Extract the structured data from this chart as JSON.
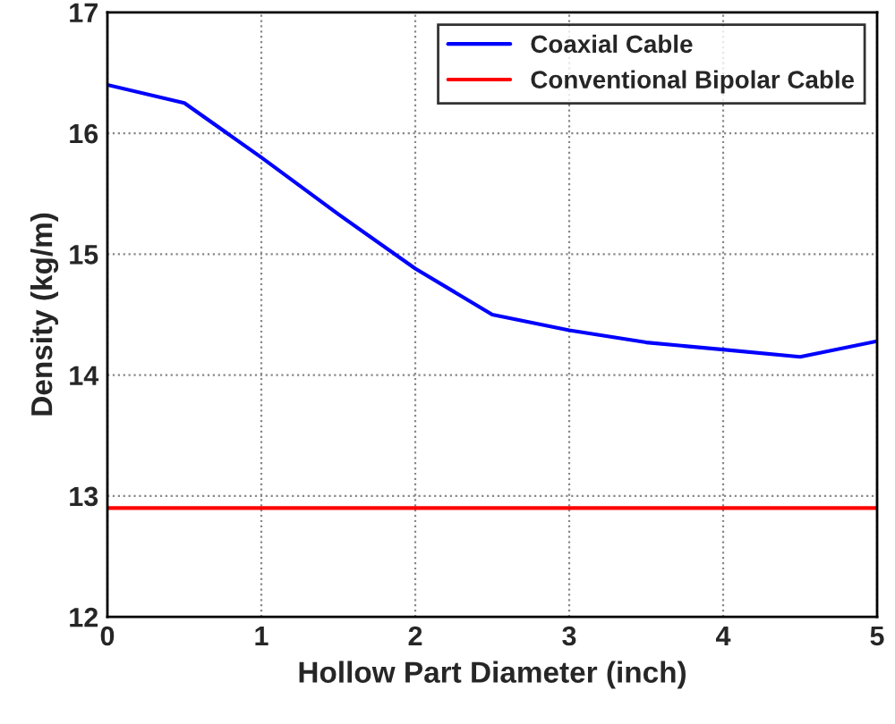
{
  "chart_data": {
    "type": "line",
    "xlabel": "Hollow Part Diameter (inch)",
    "ylabel": "Density (kg/m)",
    "x": [
      0,
      0.5,
      1,
      1.5,
      2,
      2.5,
      3,
      3.5,
      4,
      4.5,
      5
    ],
    "series": [
      {
        "name": "Coaxial Cable",
        "color": "#0000ff",
        "values": [
          16.4,
          16.25,
          15.8,
          15.33,
          14.88,
          14.5,
          14.37,
          14.27,
          14.21,
          14.15,
          14.28
        ]
      },
      {
        "name": "Conventional Bipolar Cable",
        "color": "#ff0000",
        "values": [
          12.9,
          12.9,
          12.9,
          12.9,
          12.9,
          12.9,
          12.9,
          12.9,
          12.9,
          12.9,
          12.9
        ]
      }
    ],
    "xlim": [
      0,
      5
    ],
    "xticks": [
      0,
      1,
      2,
      3,
      4,
      5
    ],
    "ylim": [
      12,
      17
    ],
    "yticks": [
      12,
      13,
      14,
      15,
      16,
      17
    ],
    "grid": true,
    "legend": "top right",
    "marker": "none",
    "line_style": "solid"
  }
}
